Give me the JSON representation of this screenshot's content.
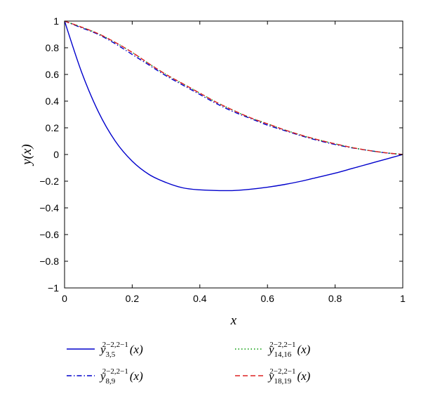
{
  "chart_data": {
    "type": "line",
    "xlabel": "x",
    "ylabel": "y(x)",
    "xlim": [
      0,
      1
    ],
    "ylim": [
      -1,
      1
    ],
    "xticks": [
      "0",
      "0.2",
      "0.4",
      "0.6",
      "0.8",
      "1"
    ],
    "yticks": [
      "1",
      "0.8",
      "0.6",
      "0.4",
      "0.2",
      "0",
      "−0.2",
      "−0.4",
      "−0.6",
      "−0.8",
      "−1"
    ],
    "x": [
      0,
      0.05,
      0.1,
      0.15,
      0.2,
      0.25,
      0.3,
      0.35,
      0.4,
      0.45,
      0.5,
      0.55,
      0.6,
      0.65,
      0.7,
      0.75,
      0.8,
      0.85,
      0.9,
      0.95,
      1
    ],
    "legend_position": "below",
    "series": [
      {
        "label_base": "y",
        "sub": "3,5",
        "sup": "2−2,2−1",
        "arg": "(x)",
        "color": "#0000cc",
        "dash": "solid",
        "values": [
          1.0,
          0.62,
          0.32,
          0.1,
          -0.05,
          -0.15,
          -0.21,
          -0.25,
          -0.265,
          -0.27,
          -0.27,
          -0.26,
          -0.245,
          -0.225,
          -0.2,
          -0.17,
          -0.14,
          -0.105,
          -0.07,
          -0.035,
          0.0
        ]
      },
      {
        "label_base": "y",
        "sub": "8,9",
        "sup": "2−2,2−1",
        "arg": "(x)",
        "color": "#0000cc",
        "dash": "dashdot",
        "values": [
          1.0,
          0.95,
          0.9,
          0.83,
          0.75,
          0.67,
          0.59,
          0.52,
          0.45,
          0.38,
          0.32,
          0.27,
          0.22,
          0.18,
          0.14,
          0.105,
          0.075,
          0.05,
          0.03,
          0.012,
          0.0
        ]
      },
      {
        "label_base": "y",
        "sub": "14,16",
        "sup": "2−2,2−1",
        "arg": "(x)",
        "color": "#009900",
        "dash": "dotted",
        "values": [
          1.0,
          0.955,
          0.905,
          0.84,
          0.765,
          0.68,
          0.6,
          0.53,
          0.46,
          0.39,
          0.33,
          0.275,
          0.23,
          0.185,
          0.145,
          0.11,
          0.08,
          0.052,
          0.03,
          0.013,
          0.0
        ]
      },
      {
        "label_base": "y",
        "sub": "18,19",
        "sup": "2−2,2−1",
        "arg": "(x)",
        "color": "#dd2222",
        "dash": "dashed",
        "values": [
          1.0,
          0.955,
          0.905,
          0.84,
          0.765,
          0.68,
          0.6,
          0.53,
          0.46,
          0.39,
          0.33,
          0.275,
          0.23,
          0.185,
          0.145,
          0.11,
          0.08,
          0.052,
          0.03,
          0.013,
          0.0
        ]
      }
    ]
  }
}
